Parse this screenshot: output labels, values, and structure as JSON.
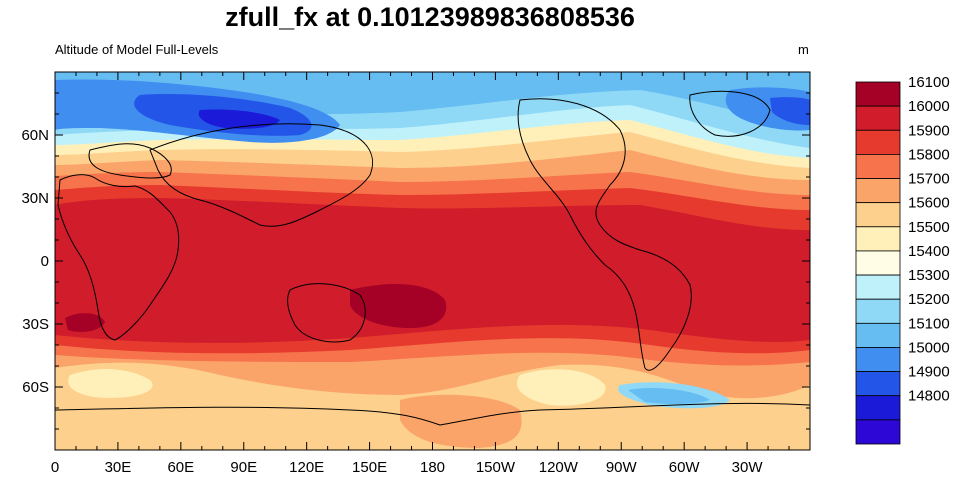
{
  "title": "zfull_fx at 0.10123989836808536",
  "left_subtitle": "Altitude of Model Full-Levels",
  "units": "m",
  "x_ticks": [
    "0",
    "30E",
    "60E",
    "90E",
    "120E",
    "150E",
    "180",
    "150W",
    "120W",
    "90W",
    "60W",
    "30W"
  ],
  "y_ticks": [
    "60N",
    "30N",
    "0",
    "30S",
    "60S"
  ],
  "colorbar": {
    "labels": [
      "16100",
      "16000",
      "15900",
      "15800",
      "15700",
      "15600",
      "15500",
      "15400",
      "15300",
      "15200",
      "15100",
      "15000",
      "14900",
      "14800"
    ],
    "colors": [
      "#a50026",
      "#d01c2b",
      "#e63a2e",
      "#f6734b",
      "#fba46a",
      "#fdd08d",
      "#fef0b8",
      "#fffde6",
      "#bff1fb",
      "#8fd9f7",
      "#66bdf2",
      "#3f8ef0",
      "#2355e8",
      "#1a1ad8",
      "#2d07d6"
    ]
  },
  "colors": {
    "tropics": "#d01c2b",
    "subtropics": "#f6734b",
    "midlat_south": "#fdd08d",
    "polar_north": "#3f8ef0",
    "polar_core": "#2355e8",
    "coast": "#000000"
  }
}
